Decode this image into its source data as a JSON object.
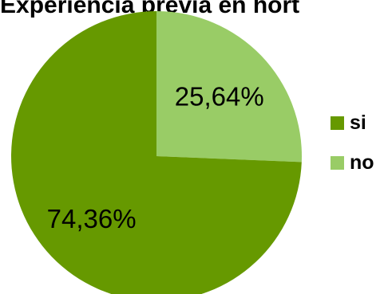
{
  "chart_data": {
    "type": "pie",
    "title": "Experiencia previa en hort",
    "categories": [
      "si",
      "no"
    ],
    "values": [
      74.36,
      25.64
    ],
    "value_labels": [
      "74,36%",
      "25,64%"
    ],
    "colors": [
      "#669900",
      "#99cc66"
    ],
    "legend_position": "right"
  }
}
